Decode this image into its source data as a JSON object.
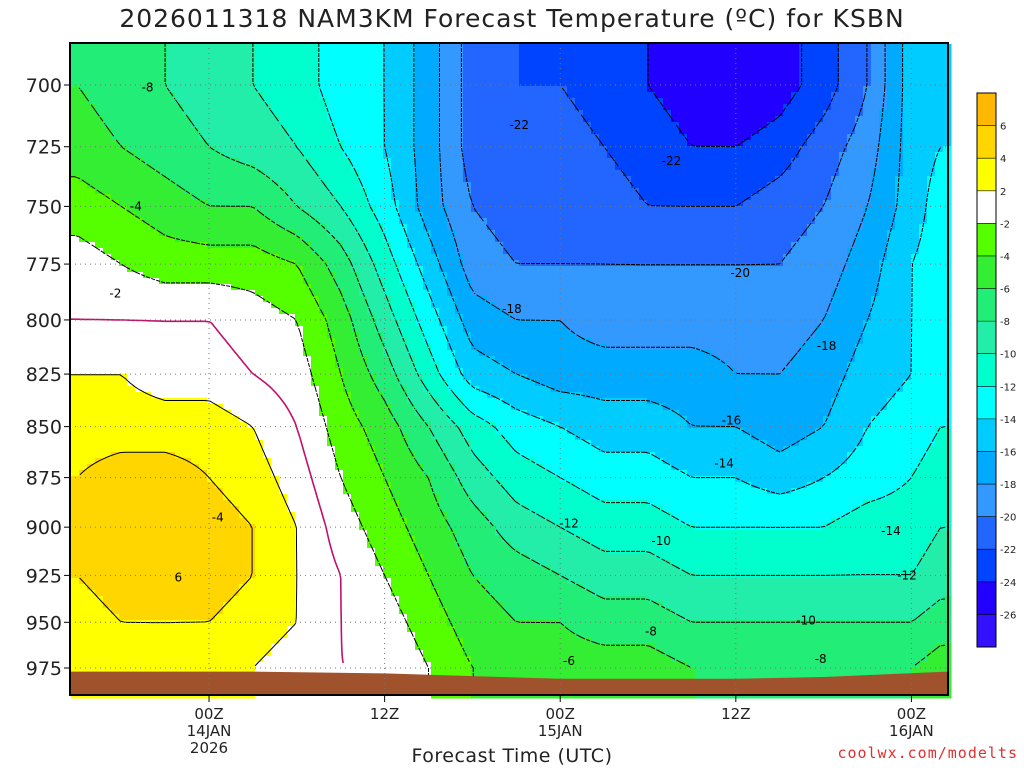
{
  "title": "2026011318 NAM3KM Forecast Temperature (ºC) for KSBN",
  "credit": "coolwx.com/modelts",
  "chart_data": {
    "type": "heatmap",
    "title": "2026011318 NAM3KM Forecast Temperature (ºC) for KSBN",
    "xlabel": "Forecast Time (UTC)",
    "ylabel": "",
    "y_ticks": [
      700,
      725,
      750,
      775,
      800,
      825,
      850,
      875,
      900,
      925,
      950,
      975
    ],
    "ylim": [
      975,
      688
    ],
    "xlim_hours": [
      -9.5,
      50.5
    ],
    "x_ticks": [
      {
        "hour": 0,
        "lines": [
          "00Z",
          "14JAN",
          "2026"
        ]
      },
      {
        "hour": 12,
        "lines": [
          "12Z"
        ]
      },
      {
        "hour": 24,
        "lines": [
          "00Z",
          "15JAN"
        ]
      },
      {
        "hour": 36,
        "lines": [
          "12Z"
        ]
      },
      {
        "hour": 48,
        "lines": [
          "00Z",
          "16JAN"
        ]
      }
    ],
    "grid": true,
    "colorbar": {
      "labels": [
        "6",
        "4",
        "2",
        "-2",
        "-4",
        "-6",
        "-8",
        "-10",
        "-12",
        "-14",
        "-16",
        "-18",
        "-20",
        "-22",
        "-24",
        "-26"
      ],
      "colors": [
        "#ffb800",
        "#ffd600",
        "#ffff00",
        "#ffffff",
        "#55ff00",
        "#33ee33",
        "#22ee77",
        "#22eeaa",
        "#00ffcc",
        "#00ffff",
        "#00ccff",
        "#00aaff",
        "#3399ff",
        "#2266ff",
        "#0044ff",
        "#2200ff",
        "#3311ff"
      ]
    },
    "x_hours": [
      -9,
      -6,
      -3,
      0,
      3,
      6,
      9,
      12,
      15,
      18,
      21,
      24,
      27,
      30,
      33,
      36,
      39,
      42,
      45,
      48,
      50
    ],
    "temperature_by_level": [
      {
        "p": 700,
        "t": [
          -6,
          -7,
          -8,
          -9,
          -10,
          -11,
          -13,
          -14,
          -17,
          -21,
          -22,
          -22,
          -23,
          -24,
          -25,
          -26,
          -25,
          -23,
          -20,
          -15,
          -14
        ]
      },
      {
        "p": 725,
        "t": [
          -5,
          -6,
          -7,
          -8,
          -9,
          -10,
          -12,
          -14,
          -17,
          -21,
          -22,
          -21,
          -22,
          -23,
          -24,
          -24,
          -23,
          -21,
          -19,
          -15,
          -14
        ]
      },
      {
        "p": 750,
        "t": [
          -3,
          -4,
          -5,
          -6,
          -6,
          -8,
          -10,
          -13,
          -17,
          -20,
          -21,
          -21,
          -21,
          -22,
          -22,
          -22,
          -21,
          -20,
          -18,
          -15,
          -13
        ]
      },
      {
        "p": 775,
        "t": [
          -1,
          -2,
          -3,
          -3,
          -3,
          -4,
          -7,
          -11,
          -15,
          -19,
          -20,
          -20,
          -20,
          -20,
          -20,
          -20,
          -20,
          -19,
          -17,
          -14,
          -13
        ]
      },
      {
        "p": 800,
        "t": [
          0,
          0,
          0,
          0,
          -1,
          -2,
          -5,
          -9,
          -13,
          -17,
          -18,
          -18,
          -19,
          -19,
          -19,
          -19,
          -19,
          -18,
          -16,
          -14,
          -13
        ]
      },
      {
        "p": 825,
        "t": [
          2,
          2,
          1,
          1,
          0,
          -1,
          -4,
          -7,
          -11,
          -15,
          -16,
          -17,
          -17,
          -17,
          -17,
          -18,
          -18,
          -17,
          -15,
          -14,
          -13
        ]
      },
      {
        "p": 850,
        "t": [
          3,
          3,
          3,
          3,
          2,
          0,
          -3,
          -5,
          -8,
          -11,
          -13,
          -14,
          -15,
          -15,
          -16,
          -16,
          -17,
          -16,
          -14,
          -13,
          -12
        ]
      },
      {
        "p": 875,
        "t": [
          4,
          5,
          5,
          4,
          3,
          1,
          -2,
          -4,
          -6,
          -9,
          -11,
          -12,
          -13,
          -13,
          -14,
          -14,
          -15,
          -14,
          -13,
          -12,
          -11
        ]
      },
      {
        "p": 900,
        "t": [
          4,
          6,
          6,
          5,
          4,
          2,
          -1,
          -3,
          -5,
          -7,
          -9,
          -10,
          -11,
          -11,
          -12,
          -12,
          -12,
          -12,
          -11,
          -11,
          -10
        ]
      },
      {
        "p": 925,
        "t": [
          4,
          5,
          6,
          5,
          4,
          2,
          0,
          -2,
          -4,
          -6,
          -7,
          -8,
          -9,
          -9,
          -10,
          -10,
          -10,
          -10,
          -10,
          -10,
          -9
        ]
      },
      {
        "p": 950,
        "t": [
          3,
          4,
          4,
          4,
          3,
          2,
          0,
          -1,
          -3,
          -5,
          -6,
          -6,
          -7,
          -7,
          -8,
          -8,
          -8,
          -8,
          -8,
          -8,
          -7
        ]
      },
      {
        "p": 975,
        "t": [
          2,
          3,
          3,
          2,
          2,
          1,
          0,
          0,
          -2,
          -4,
          -5,
          -5,
          -5,
          -5,
          -6,
          -6,
          -6,
          -6,
          -6,
          -6,
          -5
        ]
      }
    ],
    "contour_labels": [
      {
        "text": "-8",
        "hour": -4.2,
        "p": 701
      },
      {
        "text": "-4",
        "hour": -5.0,
        "p": 750
      },
      {
        "text": "-2",
        "hour": -6.4,
        "p": 788
      },
      {
        "text": "-4",
        "hour": 0.6,
        "p": 895
      },
      {
        "text": "6",
        "hour": -2.1,
        "p": 926
      },
      {
        "text": "-22",
        "hour": 21.2,
        "p": 716
      },
      {
        "text": "-22",
        "hour": 31.6,
        "p": 731
      },
      {
        "text": "-20",
        "hour": 36.3,
        "p": 779
      },
      {
        "text": "-18",
        "hour": 20.7,
        "p": 795
      },
      {
        "text": "-18",
        "hour": 42.2,
        "p": 812
      },
      {
        "text": "-16",
        "hour": 35.7,
        "p": 847
      },
      {
        "text": "-14",
        "hour": 35.2,
        "p": 868
      },
      {
        "text": "-12",
        "hour": 24.6,
        "p": 898
      },
      {
        "text": "-10",
        "hour": 30.9,
        "p": 907
      },
      {
        "text": "-8",
        "hour": 30.2,
        "p": 955
      },
      {
        "text": "-6",
        "hour": 24.6,
        "p": 971
      },
      {
        "text": "-14",
        "hour": 46.6,
        "p": 902
      },
      {
        "text": "-12",
        "hour": 47.7,
        "p": 925
      },
      {
        "text": "-10",
        "hour": 40.8,
        "p": 949
      },
      {
        "text": "-8",
        "hour": 41.8,
        "p": 970
      }
    ],
    "surface_pressure": [
      {
        "hour": -9.5,
        "p": 977
      },
      {
        "hour": 3,
        "p": 977
      },
      {
        "hour": 12,
        "p": 978
      },
      {
        "hour": 20,
        "p": 980
      },
      {
        "hour": 24,
        "p": 981
      },
      {
        "hour": 36,
        "p": 981
      },
      {
        "hour": 42,
        "p": 980
      },
      {
        "hour": 50.5,
        "p": 977
      }
    ]
  }
}
